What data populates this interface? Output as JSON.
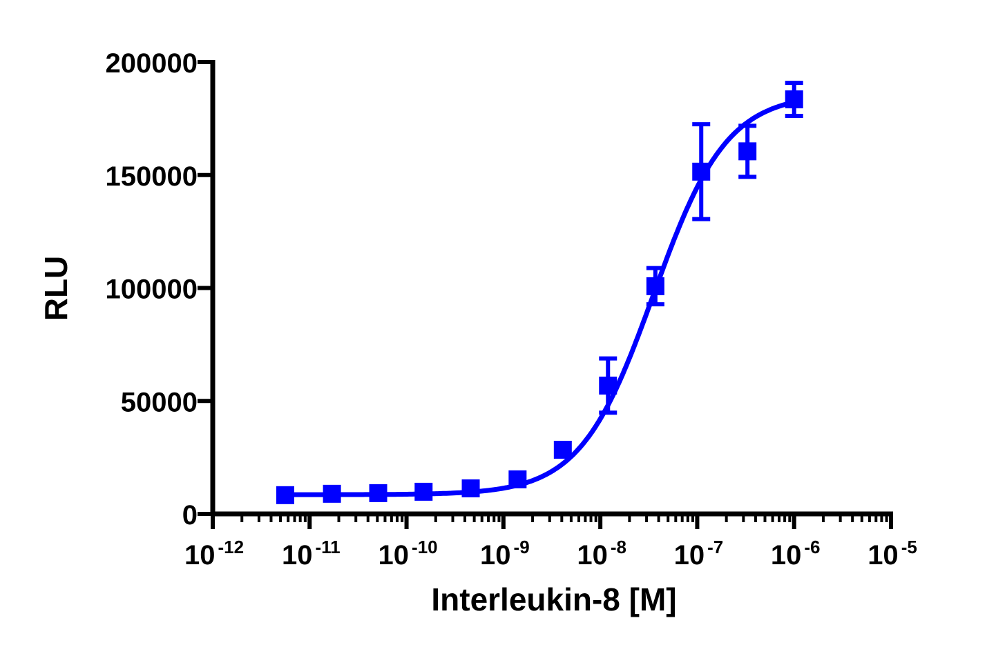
{
  "chart_data": {
    "type": "scatter",
    "xlabel": "Interleukin-8 [M]",
    "ylabel": "RLU",
    "xscale": "log",
    "xlim": [
      1e-12,
      1e-05
    ],
    "ylim": [
      0,
      200000
    ],
    "grid": false,
    "x_ticks": [
      {
        "base": "10",
        "exp": "-12",
        "value": 1e-12
      },
      {
        "base": "10",
        "exp": "-11",
        "value": 1e-11
      },
      {
        "base": "10",
        "exp": "-10",
        "value": 1e-10
      },
      {
        "base": "10",
        "exp": "-9",
        "value": 1e-09
      },
      {
        "base": "10",
        "exp": "-8",
        "value": 1e-08
      },
      {
        "base": "10",
        "exp": "-7",
        "value": 1e-07
      },
      {
        "base": "10",
        "exp": "-6",
        "value": 1e-06
      },
      {
        "base": "10",
        "exp": "-5",
        "value": 1e-05
      }
    ],
    "y_ticks": [
      "0",
      "50000",
      "100000",
      "150000",
      "200000"
    ],
    "color": "#0000ff",
    "marker": "square",
    "series": [
      {
        "points": [
          {
            "x": 5.6e-12,
            "y": 8300,
            "err": 0
          },
          {
            "x": 1.7e-11,
            "y": 8900,
            "err": 0
          },
          {
            "x": 5.1e-11,
            "y": 9200,
            "err": 0
          },
          {
            "x": 1.5e-10,
            "y": 9800,
            "err": 0
          },
          {
            "x": 4.6e-10,
            "y": 11300,
            "err": 0
          },
          {
            "x": 1.4e-09,
            "y": 15300,
            "err": 0
          },
          {
            "x": 4.1e-09,
            "y": 28400,
            "err": 0
          },
          {
            "x": 1.2e-08,
            "y": 56800,
            "err": 12000
          },
          {
            "x": 3.7e-08,
            "y": 100800,
            "err": 8000
          },
          {
            "x": 1.1e-07,
            "y": 151500,
            "err": 21000
          },
          {
            "x": 3.3e-07,
            "y": 160500,
            "err": 11300
          },
          {
            "x": 1e-06,
            "y": 183500,
            "err": 7300
          }
        ],
        "fit": {
          "model": "four-parameter logistic",
          "bottom": 8500,
          "top": 186000,
          "logEC50": -7.45,
          "hill": 1.15
        }
      }
    ]
  }
}
